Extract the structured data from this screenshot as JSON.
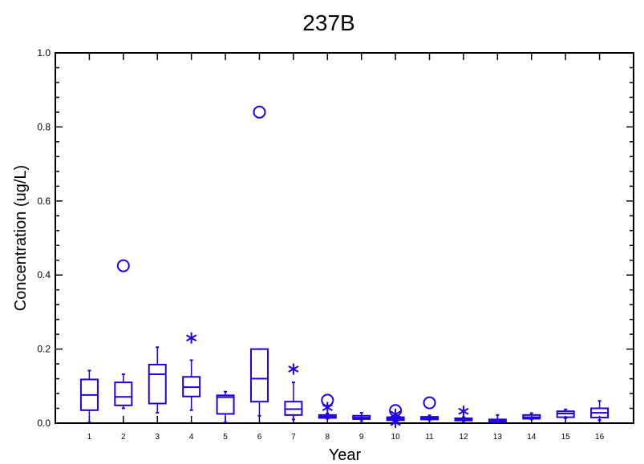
{
  "chart_data": {
    "type": "box",
    "title": "237B",
    "xlabel": "Year",
    "ylabel": "Concentration (ug/L)",
    "ylim": [
      0,
      1.0
    ],
    "y_ticks": [
      "0.0",
      "0.2",
      "0.4",
      "0.6",
      "0.8",
      "1.0"
    ],
    "categories": [
      "1",
      "2",
      "3",
      "4",
      "5",
      "6",
      "7",
      "8",
      "9",
      "10",
      "11",
      "12",
      "13",
      "14",
      "15",
      "16"
    ],
    "color": "#1f00e6",
    "boxes": [
      {
        "year": "1",
        "whisker_low": 0.002,
        "q1": 0.035,
        "median": 0.076,
        "q3": 0.118,
        "whisker_high": 0.142,
        "outliers_far": [],
        "outliers_near": []
      },
      {
        "year": "2",
        "whisker_low": 0.04,
        "q1": 0.048,
        "median": 0.071,
        "q3": 0.11,
        "whisker_high": 0.132,
        "outliers_far": [
          0.425
        ],
        "outliers_near": []
      },
      {
        "year": "3",
        "whisker_low": 0.028,
        "q1": 0.053,
        "median": 0.132,
        "q3": 0.158,
        "whisker_high": 0.205,
        "outliers_far": [],
        "outliers_near": []
      },
      {
        "year": "4",
        "whisker_low": 0.035,
        "q1": 0.072,
        "median": 0.097,
        "q3": 0.125,
        "whisker_high": 0.17,
        "outliers_far": [],
        "outliers_near": [
          0.23
        ]
      },
      {
        "year": "5",
        "whisker_low": 0.002,
        "q1": 0.025,
        "median": 0.07,
        "q3": 0.075,
        "whisker_high": 0.085,
        "outliers_far": [],
        "outliers_near": []
      },
      {
        "year": "6",
        "whisker_low": 0.02,
        "q1": 0.058,
        "median": 0.12,
        "q3": 0.2,
        "whisker_high": 0.2,
        "outliers_far": [
          0.84
        ],
        "outliers_near": []
      },
      {
        "year": "7",
        "whisker_low": 0.01,
        "q1": 0.022,
        "median": 0.038,
        "q3": 0.058,
        "whisker_high": 0.11,
        "outliers_far": [],
        "outliers_near": [
          0.146
        ]
      },
      {
        "year": "8",
        "whisker_low": 0.012,
        "q1": 0.014,
        "median": 0.018,
        "q3": 0.022,
        "whisker_high": 0.026,
        "outliers_far": [
          0.062
        ],
        "outliers_near": [
          0.042
        ]
      },
      {
        "year": "9",
        "whisker_low": 0.006,
        "q1": 0.011,
        "median": 0.015,
        "q3": 0.02,
        "whisker_high": 0.028,
        "outliers_far": [],
        "outliers_near": []
      },
      {
        "year": "10",
        "whisker_low": 0.005,
        "q1": 0.008,
        "median": 0.012,
        "q3": 0.016,
        "whisker_high": 0.02,
        "outliers_far": [
          0.034
        ],
        "outliers_near": [
          0.024,
          0.002
        ]
      },
      {
        "year": "11",
        "whisker_low": 0.008,
        "q1": 0.01,
        "median": 0.013,
        "q3": 0.017,
        "whisker_high": 0.021,
        "outliers_far": [
          0.055
        ],
        "outliers_near": []
      },
      {
        "year": "12",
        "whisker_low": 0.005,
        "q1": 0.007,
        "median": 0.01,
        "q3": 0.013,
        "whisker_high": 0.016,
        "outliers_far": [],
        "outliers_near": [
          0.032
        ]
      },
      {
        "year": "13",
        "whisker_low": 0.002,
        "q1": 0.003,
        "median": 0.006,
        "q3": 0.01,
        "whisker_high": 0.022,
        "outliers_far": [],
        "outliers_near": []
      },
      {
        "year": "14",
        "whisker_low": 0.01,
        "q1": 0.012,
        "median": 0.016,
        "q3": 0.022,
        "whisker_high": 0.027,
        "outliers_far": [],
        "outliers_near": []
      },
      {
        "year": "15",
        "whisker_low": 0.013,
        "q1": 0.016,
        "median": 0.026,
        "q3": 0.032,
        "whisker_high": 0.037,
        "outliers_far": [],
        "outliers_near": []
      },
      {
        "year": "16",
        "whisker_low": 0.008,
        "q1": 0.015,
        "median": 0.028,
        "q3": 0.04,
        "whisker_high": 0.06,
        "outliers_far": [],
        "outliers_near": []
      }
    ]
  }
}
